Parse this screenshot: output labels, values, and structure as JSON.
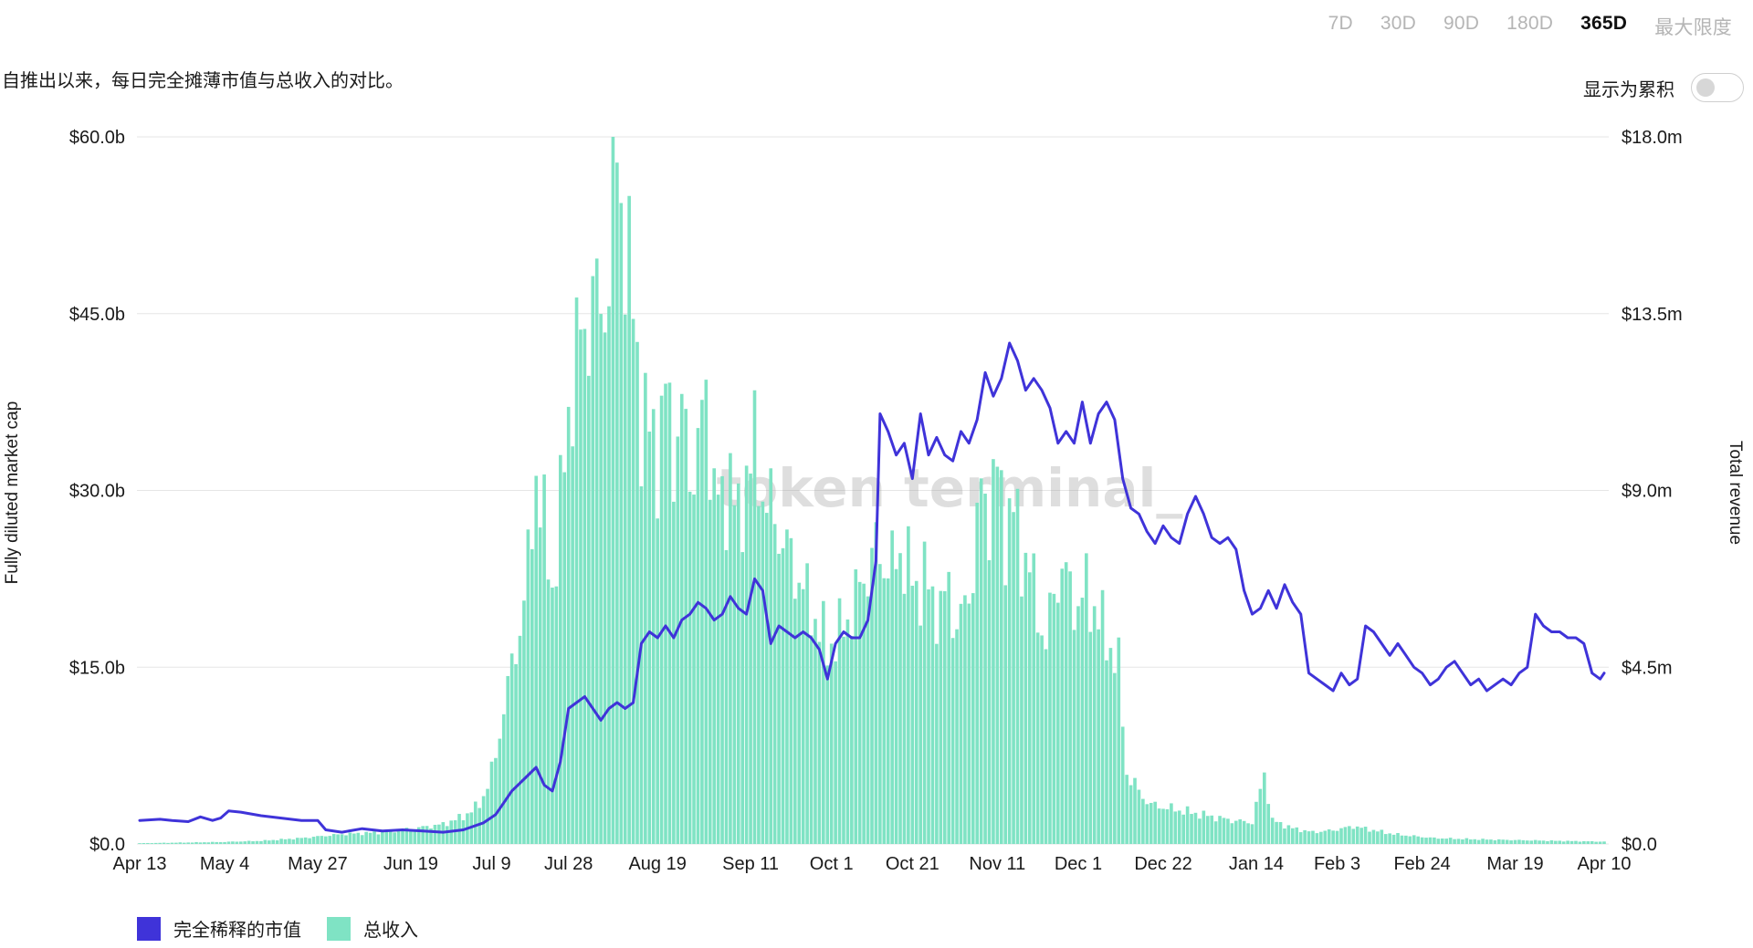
{
  "range_tabs": [
    {
      "label": "7D",
      "active": false
    },
    {
      "label": "30D",
      "active": false
    },
    {
      "label": "90D",
      "active": false
    },
    {
      "label": "180D",
      "active": false
    },
    {
      "label": "365D",
      "active": true
    },
    {
      "label": "最大限度",
      "active": false
    }
  ],
  "subtitle": "自推出以来，每日完全摊薄市值与总收入的对比。",
  "cumulative_label": "显示为累积",
  "cumulative_on": false,
  "watermark": "token terminal_",
  "colors": {
    "market_cap": "#3f33d9",
    "revenue": "#7fe3c4",
    "grid": "#e6e6e6"
  },
  "legend": [
    {
      "label": "完全稀释的市值",
      "color": "#3f33d9"
    },
    {
      "label": "总收入",
      "color": "#7fe3c4"
    }
  ],
  "chart_data": {
    "type": "bar+line",
    "ylabel_left": "Fully diluted market cap",
    "ylabel_right": "Total revenue",
    "yticks_left": [
      "$0.0",
      "$15.0b",
      "$30.0b",
      "$45.0b",
      "$60.0b"
    ],
    "yticks_right": [
      "$0.0",
      "$4.5m",
      "$9.0m",
      "$13.5m",
      "$18.0m"
    ],
    "ylim_left": [
      0,
      60
    ],
    "ylim_right": [
      0,
      18
    ],
    "left_unit": "billion USD",
    "right_unit": "million USD",
    "xticks": [
      {
        "label": "Apr 13",
        "day": 0
      },
      {
        "label": "May 4",
        "day": 21
      },
      {
        "label": "May 27",
        "day": 44
      },
      {
        "label": "Jun 19",
        "day": 67
      },
      {
        "label": "Jul 9",
        "day": 87
      },
      {
        "label": "Jul 28",
        "day": 106
      },
      {
        "label": "Aug 19",
        "day": 128
      },
      {
        "label": "Sep 11",
        "day": 151
      },
      {
        "label": "Oct 1",
        "day": 171
      },
      {
        "label": "Oct 21",
        "day": 191
      },
      {
        "label": "Nov 11",
        "day": 212
      },
      {
        "label": "Dec 1",
        "day": 232
      },
      {
        "label": "Dec 22",
        "day": 253
      },
      {
        "label": "Jan 14",
        "day": 276
      },
      {
        "label": "Feb 3",
        "day": 296
      },
      {
        "label": "Feb 24",
        "day": 317
      },
      {
        "label": "Mar 19",
        "day": 340
      },
      {
        "label": "Apr 10",
        "day": 362
      }
    ],
    "series": [
      {
        "name": "完全稀释的市值",
        "kind": "line",
        "axis": "left",
        "points": [
          [
            0,
            2.0
          ],
          [
            5,
            2.1
          ],
          [
            8,
            2.0
          ],
          [
            12,
            1.9
          ],
          [
            15,
            2.3
          ],
          [
            18,
            2.0
          ],
          [
            20,
            2.2
          ],
          [
            22,
            2.8
          ],
          [
            25,
            2.7
          ],
          [
            30,
            2.4
          ],
          [
            35,
            2.2
          ],
          [
            40,
            2.0
          ],
          [
            44,
            2.0
          ],
          [
            46,
            1.2
          ],
          [
            50,
            1.0
          ],
          [
            55,
            1.3
          ],
          [
            60,
            1.1
          ],
          [
            65,
            1.2
          ],
          [
            70,
            1.1
          ],
          [
            75,
            1.0
          ],
          [
            80,
            1.2
          ],
          [
            85,
            1.8
          ],
          [
            88,
            2.5
          ],
          [
            90,
            3.5
          ],
          [
            92,
            4.5
          ],
          [
            95,
            5.5
          ],
          [
            98,
            6.5
          ],
          [
            100,
            5.0
          ],
          [
            102,
            4.5
          ],
          [
            104,
            7.0
          ],
          [
            106,
            11.5
          ],
          [
            108,
            12.0
          ],
          [
            110,
            12.5
          ],
          [
            112,
            11.5
          ],
          [
            114,
            10.5
          ],
          [
            116,
            11.5
          ],
          [
            118,
            12.0
          ],
          [
            120,
            11.5
          ],
          [
            122,
            12.0
          ],
          [
            124,
            17.0
          ],
          [
            126,
            18.0
          ],
          [
            128,
            17.5
          ],
          [
            130,
            18.5
          ],
          [
            132,
            17.5
          ],
          [
            134,
            19.0
          ],
          [
            136,
            19.5
          ],
          [
            138,
            20.5
          ],
          [
            140,
            20.0
          ],
          [
            142,
            19.0
          ],
          [
            144,
            19.5
          ],
          [
            146,
            21.0
          ],
          [
            148,
            20.0
          ],
          [
            150,
            19.5
          ],
          [
            152,
            22.5
          ],
          [
            154,
            21.5
          ],
          [
            156,
            17.0
          ],
          [
            158,
            18.5
          ],
          [
            160,
            18.0
          ],
          [
            162,
            17.5
          ],
          [
            164,
            18.0
          ],
          [
            166,
            17.5
          ],
          [
            168,
            16.5
          ],
          [
            170,
            14.0
          ],
          [
            172,
            17.0
          ],
          [
            174,
            18.0
          ],
          [
            176,
            17.5
          ],
          [
            178,
            17.5
          ],
          [
            180,
            19.0
          ],
          [
            182,
            24.0
          ],
          [
            183,
            36.5
          ],
          [
            185,
            35.0
          ],
          [
            187,
            33.0
          ],
          [
            189,
            34.0
          ],
          [
            191,
            31.0
          ],
          [
            193,
            36.5
          ],
          [
            195,
            33.0
          ],
          [
            197,
            34.5
          ],
          [
            199,
            33.0
          ],
          [
            201,
            32.5
          ],
          [
            203,
            35.0
          ],
          [
            205,
            34.0
          ],
          [
            207,
            36.0
          ],
          [
            209,
            40.0
          ],
          [
            211,
            38.0
          ],
          [
            213,
            39.5
          ],
          [
            215,
            42.5
          ],
          [
            217,
            41.0
          ],
          [
            219,
            38.5
          ],
          [
            221,
            39.5
          ],
          [
            223,
            38.5
          ],
          [
            225,
            37.0
          ],
          [
            227,
            34.0
          ],
          [
            229,
            35.0
          ],
          [
            231,
            34.0
          ],
          [
            233,
            37.5
          ],
          [
            235,
            34.0
          ],
          [
            237,
            36.5
          ],
          [
            239,
            37.5
          ],
          [
            241,
            36.0
          ],
          [
            243,
            31.0
          ],
          [
            245,
            28.5
          ],
          [
            247,
            28.0
          ],
          [
            249,
            26.5
          ],
          [
            251,
            25.5
          ],
          [
            253,
            27.0
          ],
          [
            255,
            26.0
          ],
          [
            257,
            25.5
          ],
          [
            259,
            28.0
          ],
          [
            261,
            29.5
          ],
          [
            263,
            28.0
          ],
          [
            265,
            26.0
          ],
          [
            267,
            25.5
          ],
          [
            269,
            26.0
          ],
          [
            271,
            25.0
          ],
          [
            273,
            21.5
          ],
          [
            275,
            19.5
          ],
          [
            277,
            20.0
          ],
          [
            279,
            21.5
          ],
          [
            281,
            20.0
          ],
          [
            283,
            22.0
          ],
          [
            285,
            20.5
          ],
          [
            287,
            19.5
          ],
          [
            289,
            14.5
          ],
          [
            291,
            14.0
          ],
          [
            293,
            13.5
          ],
          [
            295,
            13.0
          ],
          [
            297,
            14.5
          ],
          [
            299,
            13.5
          ],
          [
            301,
            14.0
          ],
          [
            303,
            18.5
          ],
          [
            305,
            18.0
          ],
          [
            307,
            17.0
          ],
          [
            309,
            16.0
          ],
          [
            311,
            17.0
          ],
          [
            313,
            16.0
          ],
          [
            315,
            15.0
          ],
          [
            317,
            14.5
          ],
          [
            319,
            13.5
          ],
          [
            321,
            14.0
          ],
          [
            323,
            15.0
          ],
          [
            325,
            15.5
          ],
          [
            327,
            14.5
          ],
          [
            329,
            13.5
          ],
          [
            331,
            14.0
          ],
          [
            333,
            13.0
          ],
          [
            335,
            13.5
          ],
          [
            337,
            14.0
          ],
          [
            339,
            13.5
          ],
          [
            341,
            14.5
          ],
          [
            343,
            15.0
          ],
          [
            345,
            19.5
          ],
          [
            347,
            18.5
          ],
          [
            349,
            18.0
          ],
          [
            351,
            18.0
          ],
          [
            353,
            17.5
          ],
          [
            355,
            17.5
          ],
          [
            357,
            17.0
          ],
          [
            359,
            14.5
          ],
          [
            361,
            14.0
          ],
          [
            362,
            14.5
          ]
        ]
      },
      {
        "name": "总收入",
        "kind": "bar",
        "axis": "right",
        "points": [
          [
            0,
            0.02
          ],
          [
            20,
            0.05
          ],
          [
            30,
            0.08
          ],
          [
            40,
            0.15
          ],
          [
            50,
            0.25
          ],
          [
            60,
            0.3
          ],
          [
            68,
            0.4
          ],
          [
            75,
            0.5
          ],
          [
            80,
            0.7
          ],
          [
            84,
            1.0
          ],
          [
            86,
            1.5
          ],
          [
            88,
            2.2
          ],
          [
            90,
            3.5
          ],
          [
            92,
            4.5
          ],
          [
            94,
            5.5
          ],
          [
            96,
            7.0
          ],
          [
            98,
            9.5
          ],
          [
            100,
            8.0
          ],
          [
            102,
            6.5
          ],
          [
            104,
            8.5
          ],
          [
            106,
            11.0
          ],
          [
            108,
            12.5
          ],
          [
            110,
            13.0
          ],
          [
            112,
            14.0
          ],
          [
            114,
            13.5
          ],
          [
            116,
            14.5
          ],
          [
            118,
            17.5
          ],
          [
            120,
            15.5
          ],
          [
            122,
            13.5
          ],
          [
            124,
            11.0
          ],
          [
            126,
            10.5
          ],
          [
            128,
            10.0
          ],
          [
            130,
            11.5
          ],
          [
            132,
            10.0
          ],
          [
            134,
            11.0
          ],
          [
            136,
            9.5
          ],
          [
            138,
            10.0
          ],
          [
            140,
            11.5
          ],
          [
            142,
            9.0
          ],
          [
            144,
            8.5
          ],
          [
            146,
            9.5
          ],
          [
            148,
            8.0
          ],
          [
            150,
            9.5
          ],
          [
            152,
            10.0
          ],
          [
            154,
            9.0
          ],
          [
            156,
            8.5
          ],
          [
            158,
            8.0
          ],
          [
            160,
            7.5
          ],
          [
            162,
            7.0
          ],
          [
            164,
            6.5
          ],
          [
            166,
            6.0
          ],
          [
            168,
            5.5
          ],
          [
            170,
            5.0
          ],
          [
            172,
            5.2
          ],
          [
            174,
            5.5
          ],
          [
            176,
            6.0
          ],
          [
            178,
            6.5
          ],
          [
            180,
            7.0
          ],
          [
            182,
            7.5
          ],
          [
            184,
            7.2
          ],
          [
            186,
            7.0
          ],
          [
            188,
            7.5
          ],
          [
            190,
            7.0
          ],
          [
            192,
            6.5
          ],
          [
            194,
            6.8
          ],
          [
            196,
            6.2
          ],
          [
            198,
            6.0
          ],
          [
            200,
            6.5
          ],
          [
            202,
            5.5
          ],
          [
            204,
            6.0
          ],
          [
            206,
            7.0
          ],
          [
            208,
            9.0
          ],
          [
            210,
            8.5
          ],
          [
            212,
            9.5
          ],
          [
            214,
            8.0
          ],
          [
            216,
            8.5
          ],
          [
            218,
            7.5
          ],
          [
            220,
            7.0
          ],
          [
            222,
            6.0
          ],
          [
            224,
            5.0
          ],
          [
            226,
            6.5
          ],
          [
            228,
            7.0
          ],
          [
            230,
            6.5
          ],
          [
            232,
            6.0
          ],
          [
            234,
            6.5
          ],
          [
            236,
            6.0
          ],
          [
            238,
            5.5
          ],
          [
            240,
            5.0
          ],
          [
            242,
            4.5
          ],
          [
            244,
            1.8
          ],
          [
            246,
            1.5
          ],
          [
            248,
            1.2
          ],
          [
            250,
            1.0
          ],
          [
            255,
            0.9
          ],
          [
            260,
            0.8
          ],
          [
            265,
            0.7
          ],
          [
            270,
            0.6
          ],
          [
            275,
            0.55
          ],
          [
            278,
            1.8
          ],
          [
            280,
            0.6
          ],
          [
            285,
            0.4
          ],
          [
            290,
            0.3
          ],
          [
            295,
            0.35
          ],
          [
            300,
            0.45
          ],
          [
            305,
            0.35
          ],
          [
            310,
            0.25
          ],
          [
            315,
            0.2
          ],
          [
            320,
            0.15
          ],
          [
            330,
            0.12
          ],
          [
            340,
            0.1
          ],
          [
            350,
            0.08
          ],
          [
            362,
            0.06
          ]
        ]
      }
    ]
  }
}
